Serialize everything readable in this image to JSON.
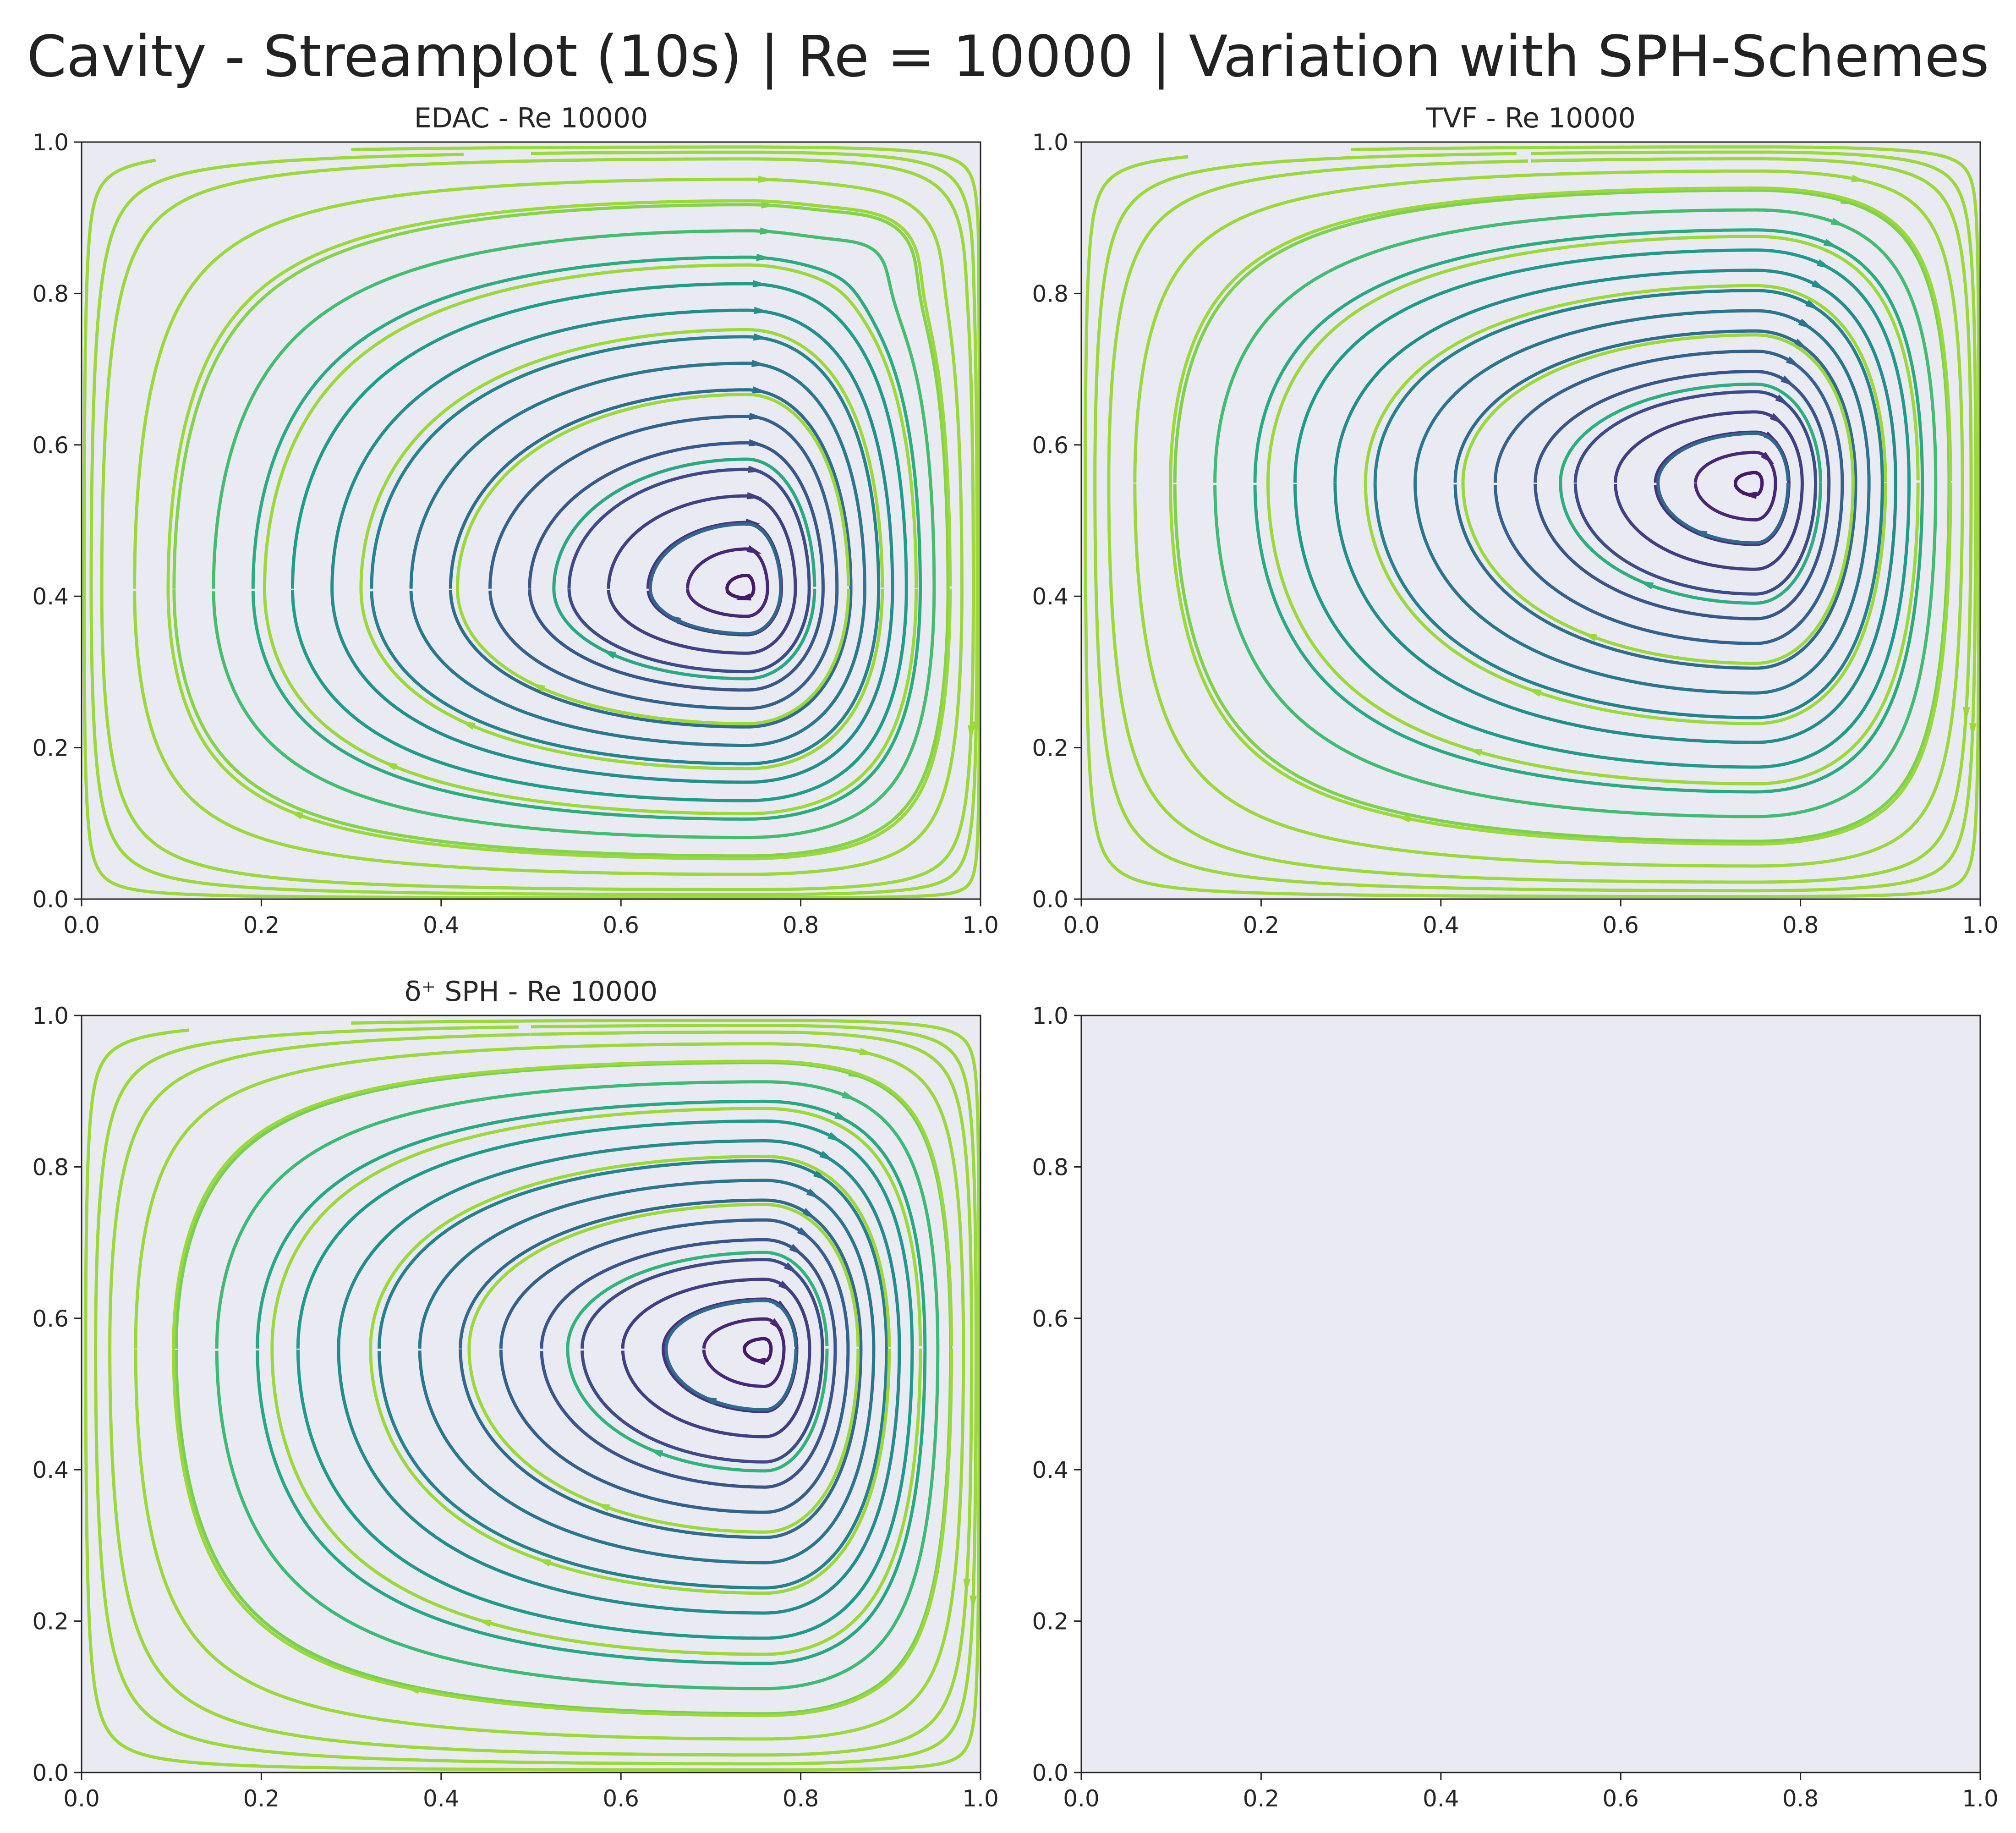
{
  "figure": {
    "title": "Cavity - Streamplot (10s) | Re = 10000 | Variation with SPH-Schemes",
    "background_color": "#eaeaf2",
    "axis_color": "#262626",
    "colormap": "viridis"
  },
  "chart_data": [
    {
      "type": "streamplot",
      "title": "EDAC - Re 10000",
      "xlim": [
        0,
        1
      ],
      "ylim": [
        0,
        1
      ],
      "xticks": [
        "0.0",
        "0.2",
        "0.4",
        "0.6",
        "0.8",
        "1.0"
      ],
      "yticks": [
        "0.0",
        "0.2",
        "0.4",
        "0.6",
        "0.8",
        "1.0"
      ],
      "vortex_center": [
        0.74,
        0.41
      ],
      "secondary_vortex": [
        0.9,
        0.87
      ],
      "grid": false
    },
    {
      "type": "streamplot",
      "title": "TVF - Re 10000",
      "xlim": [
        0,
        1
      ],
      "ylim": [
        0,
        1
      ],
      "xticks": [
        "0.0",
        "0.2",
        "0.4",
        "0.6",
        "0.8",
        "1.0"
      ],
      "yticks": [
        "0.0",
        "0.2",
        "0.4",
        "0.6",
        "0.8",
        "1.0"
      ],
      "vortex_center": [
        0.75,
        0.55
      ],
      "grid": false
    },
    {
      "type": "streamplot",
      "title": "δ⁺ SPH - Re 10000",
      "xlim": [
        0,
        1
      ],
      "ylim": [
        0,
        1
      ],
      "xticks": [
        "0.0",
        "0.2",
        "0.4",
        "0.6",
        "0.8",
        "1.0"
      ],
      "yticks": [
        "0.0",
        "0.2",
        "0.4",
        "0.6",
        "0.8",
        "1.0"
      ],
      "vortex_center": [
        0.76,
        0.56
      ],
      "grid": false
    },
    {
      "type": "empty",
      "title": "",
      "xlim": [
        0,
        1
      ],
      "ylim": [
        0,
        1
      ],
      "xticks": [
        "0.0",
        "0.2",
        "0.4",
        "0.6",
        "0.8",
        "1.0"
      ],
      "yticks": [
        "0.0",
        "0.2",
        "0.4",
        "0.6",
        "0.8",
        "1.0"
      ],
      "grid": false
    }
  ]
}
